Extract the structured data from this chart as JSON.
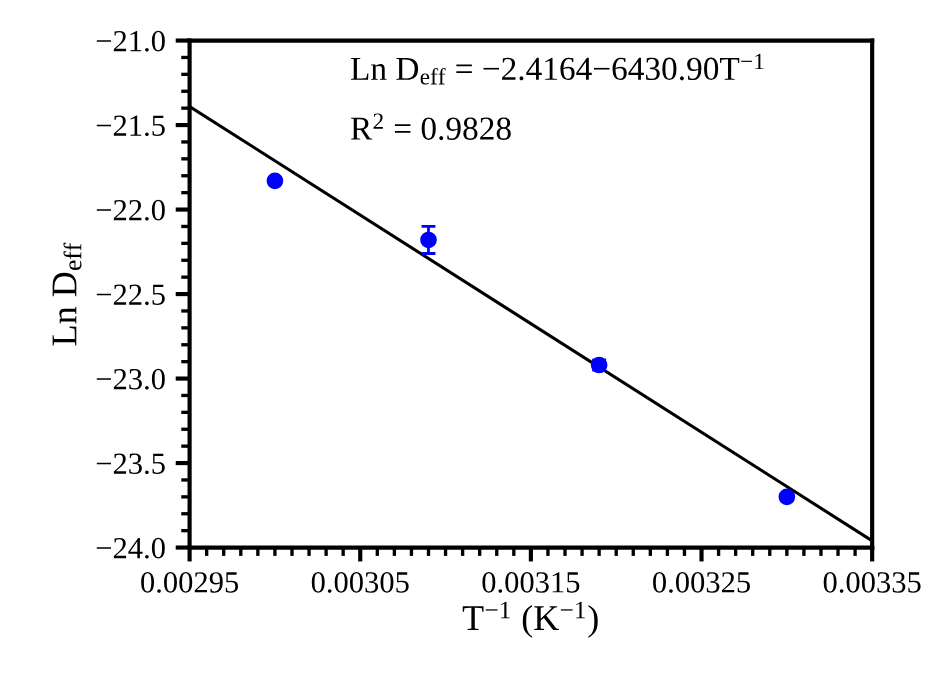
{
  "chart_data": {
    "type": "scatter",
    "xlabel": "T$^{−1}$ (K$^{−1}$)",
    "ylabel": "Ln D$_{eff}$",
    "annotations": [
      "Ln D$_{eff}$ = −2.4164−6430.90T$^{−1}$",
      "R$^{2}$ = 0.9828"
    ],
    "series": [
      {
        "type": "scatter",
        "color": "#0000ff",
        "marker": "circle",
        "x": [
          0.003,
          0.00309,
          0.00319,
          0.0033
        ],
        "values": [
          -21.83,
          -22.18,
          -22.92,
          -23.7
        ],
        "errors": [
          0.02,
          0.08,
          0.03,
          0.02
        ]
      },
      {
        "type": "line",
        "color": "#000000",
        "marker": "none",
        "line_style": "solid",
        "x": [
          0.00295,
          0.00335
        ],
        "values": [
          -21.39,
          -23.96
        ]
      }
    ],
    "xlim": [
      0.00295,
      0.00335
    ],
    "xticks": [
      0.00295,
      0.00305,
      0.00315,
      0.00325,
      0.00335
    ],
    "ylim": [
      -24.0,
      -21.0
    ],
    "yticks": [
      {
        "value": -24.0,
        "label": "−24.0"
      },
      {
        "value": -23.5,
        "label": "−23.5"
      },
      {
        "value": -23.0,
        "label": "−23.0"
      },
      {
        "value": -22.5,
        "label": "−22.5"
      },
      {
        "value": -22.0,
        "label": "−22.0"
      },
      {
        "value": -21.5,
        "label": "−21.5"
      },
      {
        "value": -21.0,
        "label": "−21.0"
      }
    ],
    "grid": false,
    "legend": false
  }
}
